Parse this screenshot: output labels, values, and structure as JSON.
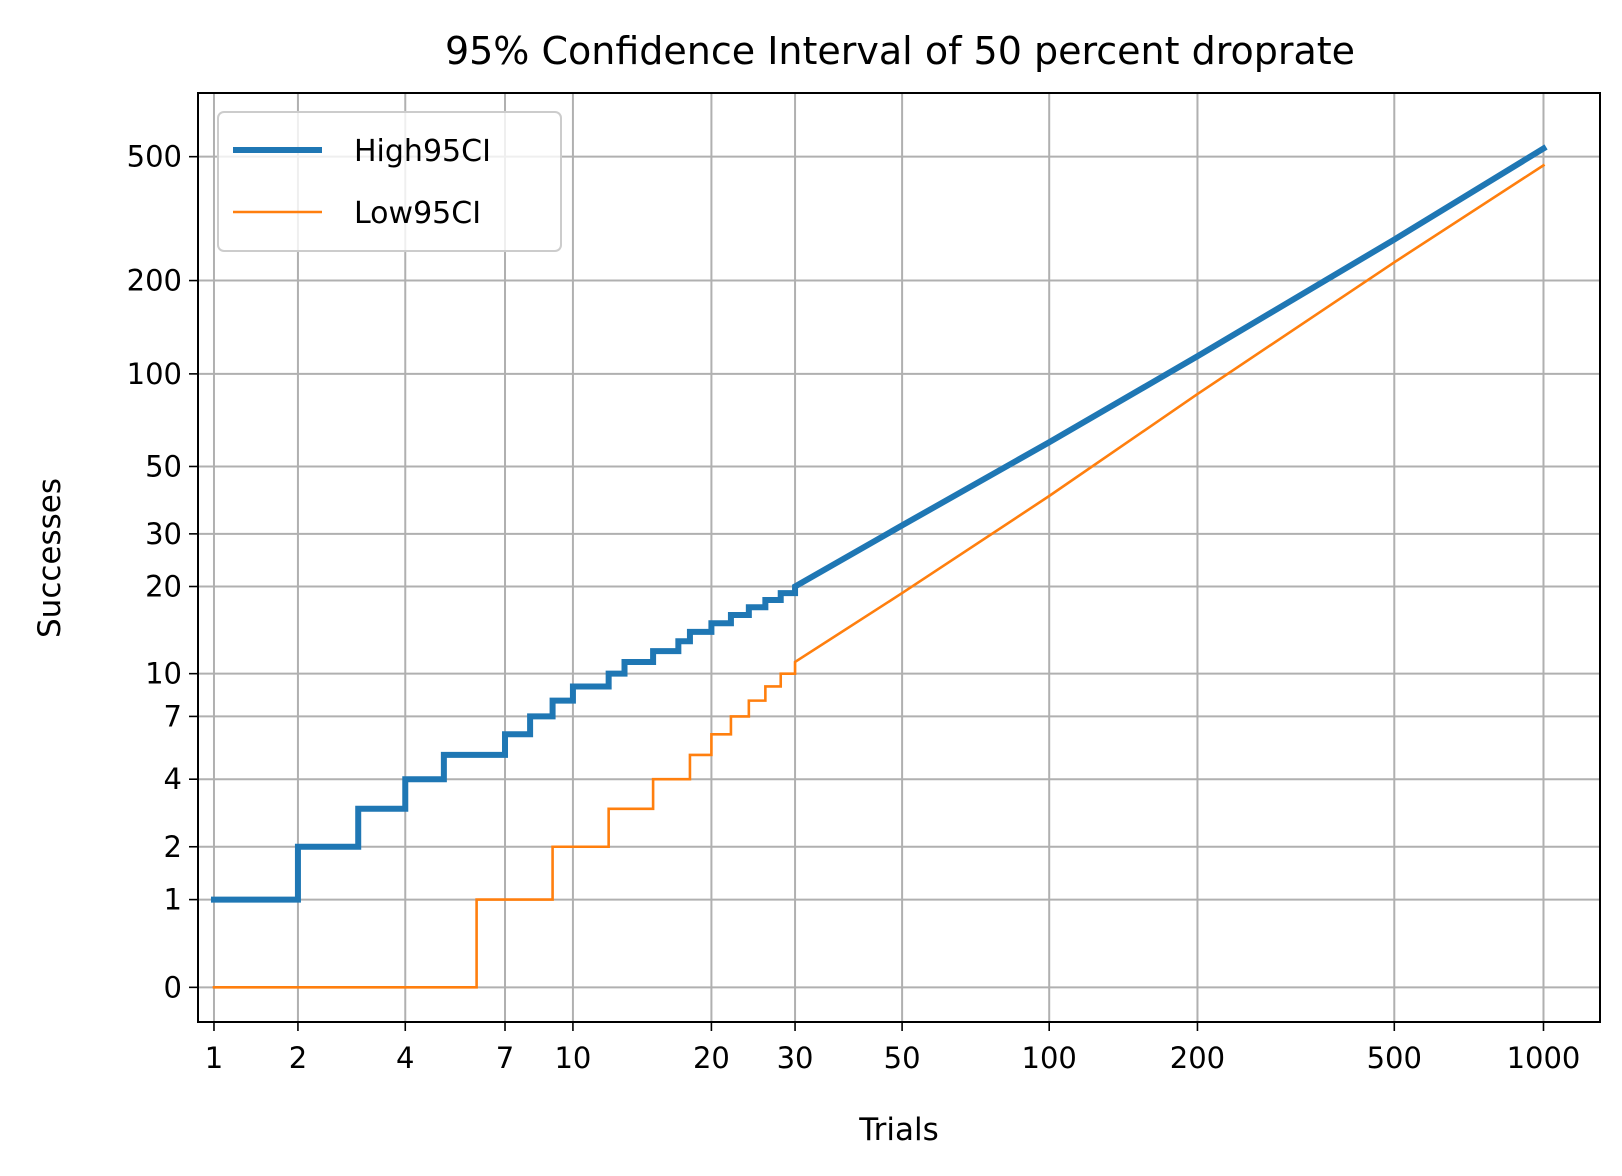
{
  "chart_data": {
    "type": "line",
    "step": "post",
    "title": "95% Confidence Interval of 50 percent droprate",
    "xlabel": "Trials",
    "ylabel": "Successes",
    "x_scale": "symlog",
    "y_scale": "symlog",
    "xlim": [
      0.85,
      1300
    ],
    "ylim": [
      -0.32,
      800
    ],
    "grid": true,
    "legend_position": "upper left",
    "x_ticks": [
      1,
      2,
      4,
      7,
      10,
      20,
      30,
      50,
      100,
      200,
      500,
      1000
    ],
    "x_tick_labels": [
      "1",
      "2",
      "4",
      "7",
      "10",
      "20",
      "30",
      "50",
      "100",
      "200",
      "500",
      "1000"
    ],
    "y_ticks": [
      0,
      1,
      2,
      4,
      7,
      10,
      20,
      30,
      50,
      100,
      200,
      500
    ],
    "y_tick_labels": [
      "0",
      "1",
      "2",
      "4",
      "7",
      "10",
      "20",
      "30",
      "50",
      "100",
      "200",
      "500"
    ],
    "series": [
      {
        "name": "High95CI",
        "color": "#1f77b4",
        "linewidth": "thick",
        "x": [
          1,
          2,
          3,
          4,
          5,
          7,
          8,
          9,
          10,
          12,
          13,
          15,
          17,
          18,
          20,
          22,
          24,
          26,
          28,
          30,
          50,
          100,
          200,
          500,
          1000
        ],
        "y": [
          1,
          2,
          3,
          4,
          5,
          6,
          7,
          8,
          9,
          10,
          11,
          12,
          13,
          14,
          15,
          16,
          17,
          18,
          19,
          20,
          32,
          60,
          114,
          271,
          531
        ]
      },
      {
        "name": "Low95CI",
        "color": "#ff7f0e",
        "linewidth": "thin",
        "x": [
          1,
          6,
          9,
          12,
          15,
          18,
          20,
          22,
          24,
          26,
          28,
          30,
          50,
          100,
          200,
          500,
          1000
        ],
        "y": [
          0,
          1,
          2,
          3,
          4,
          5,
          6,
          7,
          8,
          9,
          10,
          11,
          19,
          40,
          86,
          229,
          469
        ]
      }
    ]
  }
}
